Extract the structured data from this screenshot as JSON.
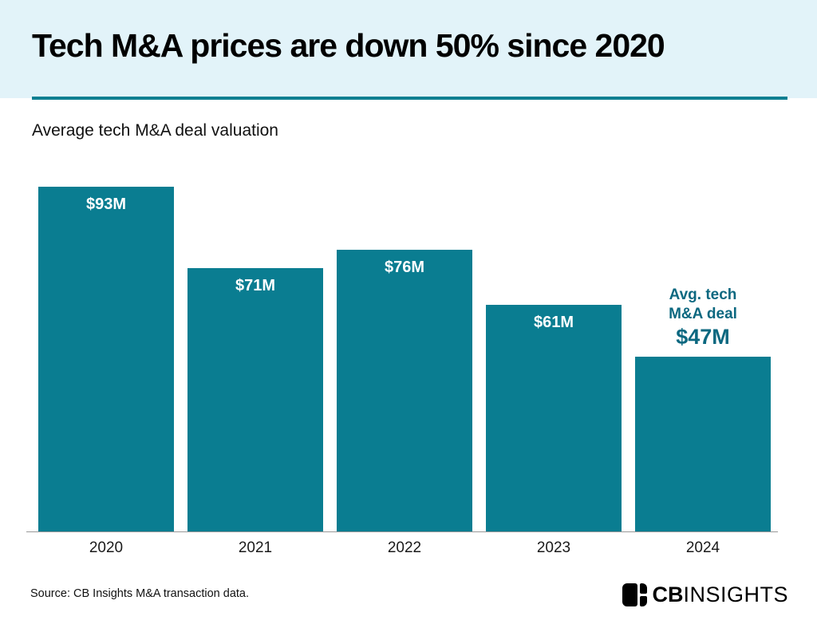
{
  "header": {
    "title": "Tech M&A prices are down 50% since 2020"
  },
  "subtitle": "Average tech M&A deal valuation",
  "chart_data": {
    "type": "bar",
    "title": "Tech M&A prices are down 50% since 2020",
    "subtitle": "Average tech M&A deal valuation",
    "categories": [
      "2020",
      "2021",
      "2022",
      "2023",
      "2024"
    ],
    "values": [
      93,
      71,
      76,
      61,
      47
    ],
    "value_labels": [
      "$93M",
      "$71M",
      "$76M",
      "$61M",
      "$47M"
    ],
    "label_inside": [
      true,
      true,
      true,
      true,
      false
    ],
    "unit": "$M",
    "xlabel": "",
    "ylabel": "",
    "ylim": [
      0,
      100
    ],
    "grid": false,
    "legend": false,
    "annotation": {
      "applies_to": "2024",
      "lines": [
        "Avg. tech",
        "M&A deal"
      ],
      "value": "$47M"
    }
  },
  "footer": {
    "source": "Source: CB Insights M&A transaction data.",
    "logo_bold": "CB",
    "logo_light": "INSIGHTS"
  },
  "colors": {
    "bar_teal": "#0a7d91",
    "annotation_teal": "#0c6880",
    "header_bg": "#e2f3f9",
    "divider_teal": "#0f7f92",
    "axis_gray": "#999999",
    "text_black": "#111111",
    "bar_label_white": "#ffffff"
  }
}
